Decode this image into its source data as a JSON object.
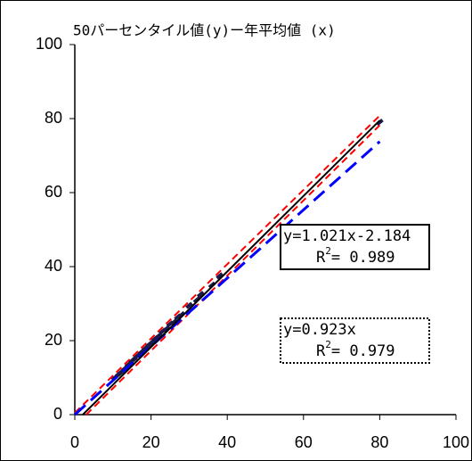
{
  "chart_data": {
    "type": "scatter",
    "title": "50パーセンタイル値(y)ー年平均値 (x)",
    "xlim": [
      0,
      100
    ],
    "xticks": [
      0,
      20,
      40,
      60,
      80,
      100
    ],
    "ylim": [
      0,
      100
    ],
    "yticks": [
      0,
      20,
      40,
      60,
      80,
      100
    ],
    "grid": false,
    "points": {
      "color": "#1a1a4a",
      "x": [
        10.5,
        11,
        11.5,
        12,
        12.5,
        13,
        13.5,
        14,
        14.5,
        15,
        15.5,
        16,
        16.5,
        17,
        17.5,
        18,
        18.5,
        19,
        19.5,
        20,
        20.5,
        21,
        22,
        23,
        24,
        25,
        26,
        27,
        28,
        30,
        32,
        33,
        36,
        38,
        80
      ],
      "y": [
        10,
        10.4,
        11,
        11.2,
        11.8,
        12.4,
        12.6,
        13.5,
        13.7,
        14.6,
        14.8,
        15.5,
        16,
        16.3,
        17,
        17.2,
        18,
        18.3,
        19,
        19.2,
        19.8,
        20.5,
        21.3,
        22.5,
        23.2,
        24.5,
        25,
        26.4,
        27,
        29.5,
        31,
        32.5,
        35,
        37.5,
        79
      ]
    },
    "lines": [
      {
        "color": "#ff0000",
        "dash": true,
        "x": [
          0,
          80
        ],
        "values": [
          0.5,
          80.8
        ]
      },
      {
        "color": "#ff0000",
        "dash": true,
        "x": [
          3,
          80
        ],
        "values": [
          0,
          78.2
        ]
      },
      {
        "color": "#0000ff",
        "dash": true,
        "x": [
          0,
          80
        ],
        "values": [
          0,
          73.8
        ]
      },
      {
        "color": "#000000",
        "dash": false,
        "x": [
          2.1,
          80
        ],
        "values": [
          0,
          79.5
        ]
      }
    ],
    "annotations": [
      {
        "equation": "y=1.021x-2.184",
        "r": "R",
        "sup": "2",
        "r2": "= 0.989"
      },
      {
        "equation": "y=0.923x",
        "r": "R",
        "sup": "2",
        "r2": "= 0.979"
      }
    ]
  }
}
